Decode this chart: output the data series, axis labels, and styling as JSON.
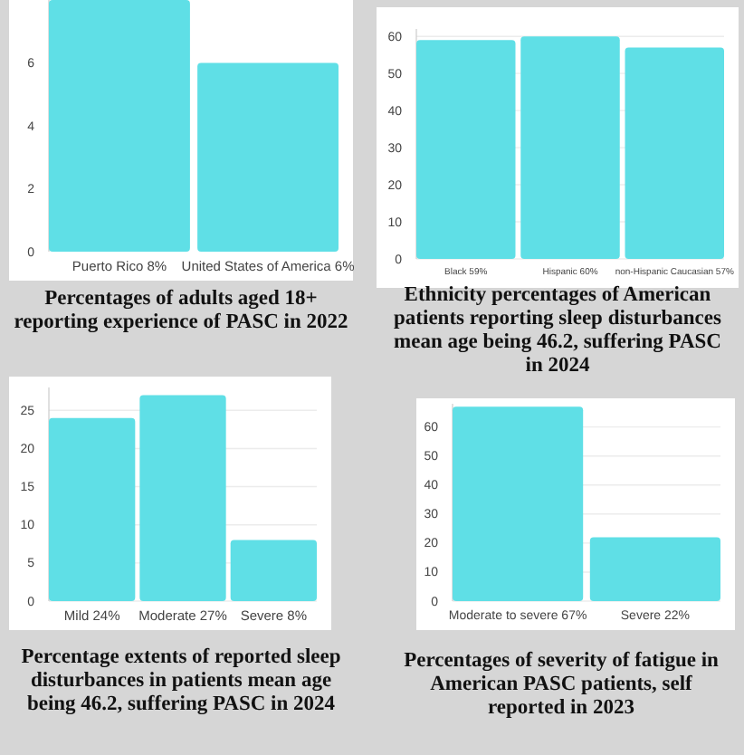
{
  "chart_data": [
    {
      "type": "bar",
      "title": "Percentages of adults aged 18+ reporting experience of PASC in 2022",
      "categories": [
        "Puerto Rico 8%",
        "United States of America 6%"
      ],
      "values": [
        8,
        6
      ],
      "color": "#5fdfe6",
      "ylim": [
        0,
        8
      ],
      "yticks": [
        0,
        2,
        4,
        6
      ],
      "grid": false
    },
    {
      "type": "bar",
      "title": "Ethnicity percentages of American patients reporting sleep disturbances mean age being 46.2, suffering PASC in 2024",
      "categories": [
        "Black 59%",
        "Hispanic 60%",
        "non-Hispanic Caucasian 57%"
      ],
      "values": [
        59,
        60,
        57
      ],
      "color": "#5fdfe6",
      "ylim": [
        0,
        62
      ],
      "yticks": [
        0,
        10,
        20,
        30,
        40,
        50,
        60
      ],
      "grid": "y"
    },
    {
      "type": "bar",
      "title": "Percentage extents of reported sleep disturbances in patients mean age being 46.2, suffering PASC in 2024",
      "categories": [
        "Mild 24%",
        "Moderate 27%",
        "Severe 8%"
      ],
      "values": [
        24,
        27,
        8
      ],
      "color": "#5fdfe6",
      "ylim": [
        0,
        28
      ],
      "yticks": [
        0,
        5,
        10,
        15,
        20,
        25
      ],
      "grid": "y"
    },
    {
      "type": "bar",
      "title": "Percentages of severity of fatigue in American PASC patients, self reported in 2023",
      "categories": [
        "Moderate to severe 67%",
        "Severe 22%"
      ],
      "values": [
        67,
        22
      ],
      "color": "#5fdfe6",
      "ylim": [
        0,
        68
      ],
      "yticks": [
        0,
        10,
        20,
        30,
        40,
        50,
        60
      ],
      "grid": "y"
    }
  ]
}
